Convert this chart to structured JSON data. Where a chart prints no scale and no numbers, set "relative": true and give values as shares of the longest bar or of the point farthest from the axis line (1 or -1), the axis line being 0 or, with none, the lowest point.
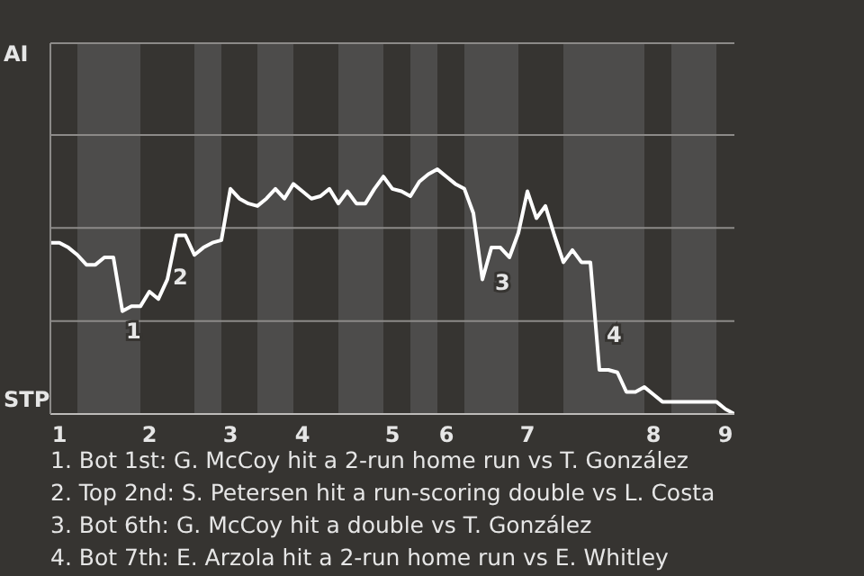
{
  "chart_data": {
    "type": "line",
    "relative": true,
    "categories": [
      null,
      "1",
      null,
      null,
      null,
      null,
      null,
      null,
      null,
      null,
      null,
      "2",
      null,
      null,
      null,
      null,
      null,
      null,
      null,
      null,
      "3",
      null,
      null,
      null,
      null,
      null,
      null,
      null,
      "4",
      null,
      null,
      null,
      null,
      null,
      null,
      null,
      null,
      null,
      "5",
      null,
      null,
      null,
      null,
      null,
      "6",
      null,
      null,
      null,
      null,
      null,
      null,
      null,
      null,
      "7",
      null,
      null,
      null,
      null,
      null,
      null,
      null,
      null,
      null,
      null,
      null,
      null,
      null,
      "8",
      null,
      null,
      null,
      null,
      null,
      null,
      null,
      "9",
      null
    ],
    "series": [
      {
        "color": "#ffffff",
        "values": [
          0.7,
          0.7,
          0.68,
          0.65,
          0.61,
          0.61,
          0.64,
          0.64,
          0.42,
          0.44,
          0.44,
          0.5,
          0.47,
          0.55,
          0.73,
          0.73,
          0.65,
          0.68,
          0.7,
          0.71,
          0.92,
          0.88,
          0.86,
          0.85,
          0.88,
          0.92,
          0.88,
          0.94,
          0.91,
          0.88,
          0.89,
          0.92,
          0.86,
          0.91,
          0.86,
          0.86,
          0.92,
          0.97,
          0.92,
          0.91,
          0.89,
          0.95,
          0.98,
          1,
          0.97,
          0.94,
          0.92,
          0.82,
          0.55,
          0.68,
          0.68,
          0.64,
          0.74,
          0.91,
          0.8,
          0.85,
          0.73,
          0.62,
          0.67,
          0.62,
          0.62,
          0.18,
          0.18,
          0.17,
          0.09,
          0.09,
          0.11,
          0.08,
          0.05,
          0.05,
          0.05,
          0.05,
          0.05,
          0.05,
          0.05,
          0.02,
          0
        ]
      }
    ],
    "ref_lines": [
      {
        "axis": "y",
        "value": 0.38,
        "color": "#8c8a88"
      },
      {
        "axis": "y",
        "value": 0.76,
        "color": "#8c8a88"
      },
      {
        "axis": "y",
        "value": 1.14,
        "color": "#8c8a88"
      }
    ],
    "legend": false,
    "marker": "none",
    "line_style": "solid",
    "annotations": [
      "AI",
      "STP",
      "1",
      "2",
      "3",
      "4",
      "1. Bot 1st: G. McCoy hit a 2-run home run vs T. González",
      "2. Top 2nd: S. Petersen hit a run-scoring double vs L. Costa",
      "3. Bot 6th: G. McCoy hit a double vs T. González",
      "4. Bot 7th: E. Arzola hit a 2-run home run vs E. Whitley"
    ]
  }
}
